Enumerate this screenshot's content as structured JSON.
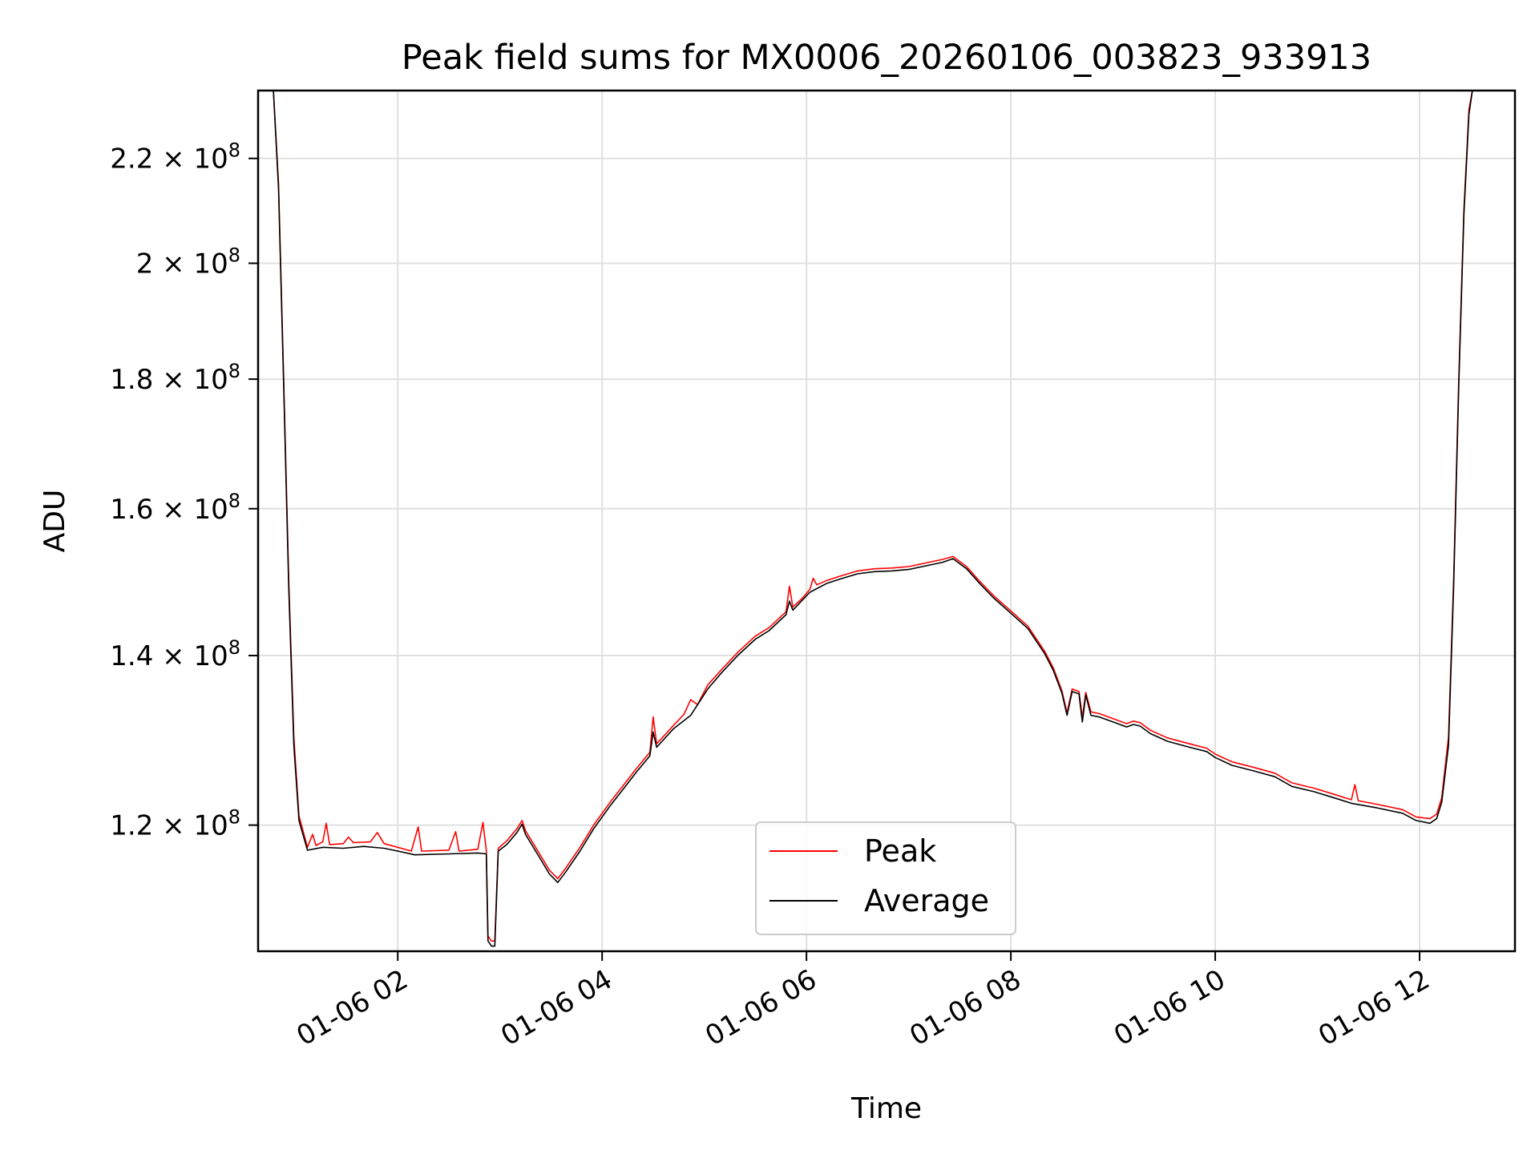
{
  "chart_data": {
    "type": "line",
    "title": "Peak field sums for MX0006_20260106_003823_933913",
    "xlabel": "Time",
    "ylabel": "ADU",
    "y_scale": "log",
    "ylim": [
      107000000,
      234000000
    ],
    "xlim": [
      "2026-01-06 00:38",
      "2026-01-06 12:56"
    ],
    "grid": true,
    "legend_position": "lower center",
    "x_ticks": [
      {
        "t": "2026-01-06 02:00",
        "label": "01-06 02"
      },
      {
        "t": "2026-01-06 04:00",
        "label": "01-06 04"
      },
      {
        "t": "2026-01-06 06:00",
        "label": "01-06 06"
      },
      {
        "t": "2026-01-06 08:00",
        "label": "01-06 08"
      },
      {
        "t": "2026-01-06 10:00",
        "label": "01-06 10"
      },
      {
        "t": "2026-01-06 12:00",
        "label": "01-06 12"
      }
    ],
    "y_ticks": [
      {
        "value": 120000000,
        "mantissa": "1.2"
      },
      {
        "value": 140000000,
        "mantissa": "1.4"
      },
      {
        "value": 160000000,
        "mantissa": "1.6"
      },
      {
        "value": 180000000,
        "mantissa": "1.8"
      },
      {
        "value": 200000000,
        "mantissa": "2"
      },
      {
        "value": 220000000,
        "mantissa": "2.2"
      }
    ],
    "tick_suffix": "× 10",
    "tick_exponent": "8",
    "series": [
      {
        "name": "Peak",
        "color": "#ff0000",
        "points": [
          [
            "2026-01-06 00:38",
            234000000
          ],
          [
            "2026-01-06 00:47",
            234000000
          ],
          [
            "2026-01-06 00:50",
            215000000
          ],
          [
            "2026-01-06 00:53",
            180000000
          ],
          [
            "2026-01-06 00:56",
            150000000
          ],
          [
            "2026-01-06 00:59",
            130000000
          ],
          [
            "2026-01-06 01:02",
            121000000
          ],
          [
            "2026-01-06 01:07",
            117600000
          ],
          [
            "2026-01-06 01:10",
            119000000
          ],
          [
            "2026-01-06 01:12",
            117800000
          ],
          [
            "2026-01-06 01:16",
            118200000
          ],
          [
            "2026-01-06 01:18",
            120200000
          ],
          [
            "2026-01-06 01:20",
            117900000
          ],
          [
            "2026-01-06 01:28",
            118000000
          ],
          [
            "2026-01-06 01:31",
            118700000
          ],
          [
            "2026-01-06 01:34",
            118100000
          ],
          [
            "2026-01-06 01:44",
            118200000
          ],
          [
            "2026-01-06 01:48",
            119200000
          ],
          [
            "2026-01-06 01:52",
            118000000
          ],
          [
            "2026-01-06 02:00",
            117600000
          ],
          [
            "2026-01-06 02:08",
            117200000
          ],
          [
            "2026-01-06 02:12",
            119800000
          ],
          [
            "2026-01-06 02:14",
            117200000
          ],
          [
            "2026-01-06 02:30",
            117300000
          ],
          [
            "2026-01-06 02:34",
            119300000
          ],
          [
            "2026-01-06 02:36",
            117200000
          ],
          [
            "2026-01-06 02:47",
            117400000
          ],
          [
            "2026-01-06 02:50",
            120300000
          ],
          [
            "2026-01-06 02:52",
            117300000
          ],
          [
            "2026-01-06 02:53",
            108500000
          ],
          [
            "2026-01-06 02:55",
            108000000
          ],
          [
            "2026-01-06 02:57",
            108000000
          ],
          [
            "2026-01-06 02:59",
            117500000
          ],
          [
            "2026-01-06 03:04",
            118300000
          ],
          [
            "2026-01-06 03:10",
            119600000
          ],
          [
            "2026-01-06 03:13",
            120500000
          ],
          [
            "2026-01-06 03:15",
            119400000
          ],
          [
            "2026-01-06 03:22",
            117300000
          ],
          [
            "2026-01-06 03:29",
            115200000
          ],
          [
            "2026-01-06 03:34",
            114300000
          ],
          [
            "2026-01-06 03:39",
            115500000
          ],
          [
            "2026-01-06 03:47",
            117600000
          ],
          [
            "2026-01-06 03:55",
            120000000
          ],
          [
            "2026-01-06 04:05",
            122600000
          ],
          [
            "2026-01-06 04:12",
            124300000
          ],
          [
            "2026-01-06 04:20",
            126300000
          ],
          [
            "2026-01-06 04:28",
            128200000
          ],
          [
            "2026-01-06 04:30",
            132400000
          ],
          [
            "2026-01-06 04:32",
            129200000
          ],
          [
            "2026-01-06 04:42",
            131400000
          ],
          [
            "2026-01-06 04:48",
            132700000
          ],
          [
            "2026-01-06 04:52",
            134500000
          ],
          [
            "2026-01-06 04:56",
            133900000
          ],
          [
            "2026-01-06 05:02",
            136300000
          ],
          [
            "2026-01-06 05:10",
            138200000
          ],
          [
            "2026-01-06 05:20",
            140500000
          ],
          [
            "2026-01-06 05:30",
            142500000
          ],
          [
            "2026-01-06 05:38",
            143600000
          ],
          [
            "2026-01-06 05:48",
            145700000
          ],
          [
            "2026-01-06 05:50",
            149100000
          ],
          [
            "2026-01-06 05:52",
            146300000
          ],
          [
            "2026-01-06 05:58",
            147600000
          ],
          [
            "2026-01-06 06:02",
            148700000
          ],
          [
            "2026-01-06 06:04",
            150200000
          ],
          [
            "2026-01-06 06:06",
            149300000
          ],
          [
            "2026-01-06 06:12",
            149900000
          ],
          [
            "2026-01-06 06:20",
            150500000
          ],
          [
            "2026-01-06 06:30",
            151200000
          ],
          [
            "2026-01-06 06:40",
            151500000
          ],
          [
            "2026-01-06 06:50",
            151600000
          ],
          [
            "2026-01-06 07:00",
            151800000
          ],
          [
            "2026-01-06 07:10",
            152300000
          ],
          [
            "2026-01-06 07:20",
            152800000
          ],
          [
            "2026-01-06 07:26",
            153200000
          ],
          [
            "2026-01-06 07:34",
            151800000
          ],
          [
            "2026-01-06 07:42",
            149700000
          ],
          [
            "2026-01-06 07:50",
            147800000
          ],
          [
            "2026-01-06 08:00",
            145800000
          ],
          [
            "2026-01-06 08:10",
            143800000
          ],
          [
            "2026-01-06 08:20",
            140500000
          ],
          [
            "2026-01-06 08:25",
            138400000
          ],
          [
            "2026-01-06 08:30",
            135600000
          ],
          [
            "2026-01-06 08:33",
            132900000
          ],
          [
            "2026-01-06 08:36",
            135800000
          ],
          [
            "2026-01-06 08:40",
            135500000
          ],
          [
            "2026-01-06 08:42",
            132300000
          ],
          [
            "2026-01-06 08:44",
            135400000
          ],
          [
            "2026-01-06 08:47",
            133000000
          ],
          [
            "2026-01-06 08:52",
            132800000
          ],
          [
            "2026-01-06 09:00",
            132200000
          ],
          [
            "2026-01-06 09:08",
            131600000
          ],
          [
            "2026-01-06 09:12",
            131900000
          ],
          [
            "2026-01-06 09:16",
            131700000
          ],
          [
            "2026-01-06 09:22",
            130800000
          ],
          [
            "2026-01-06 09:32",
            129900000
          ],
          [
            "2026-01-06 09:45",
            129200000
          ],
          [
            "2026-01-06 09:55",
            128700000
          ],
          [
            "2026-01-06 10:00",
            128000000
          ],
          [
            "2026-01-06 10:10",
            127100000
          ],
          [
            "2026-01-06 10:22",
            126500000
          ],
          [
            "2026-01-06 10:35",
            125800000
          ],
          [
            "2026-01-06 10:45",
            124700000
          ],
          [
            "2026-01-06 10:58",
            124100000
          ],
          [
            "2026-01-06 11:10",
            123400000
          ],
          [
            "2026-01-06 11:20",
            122800000
          ],
          [
            "2026-01-06 11:22",
            124500000
          ],
          [
            "2026-01-06 11:24",
            122700000
          ],
          [
            "2026-01-06 11:35",
            122300000
          ],
          [
            "2026-01-06 11:50",
            121700000
          ],
          [
            "2026-01-06 11:58",
            120900000
          ],
          [
            "2026-01-06 12:06",
            120700000
          ],
          [
            "2026-01-06 12:10",
            121200000
          ],
          [
            "2026-01-06 12:13",
            123000000
          ],
          [
            "2026-01-06 12:17",
            130000000
          ],
          [
            "2026-01-06 12:20",
            150000000
          ],
          [
            "2026-01-06 12:23",
            180000000
          ],
          [
            "2026-01-06 12:26",
            210000000
          ],
          [
            "2026-01-06 12:29",
            230000000
          ],
          [
            "2026-01-06 12:31",
            234000000
          ],
          [
            "2026-01-06 12:56",
            234000000
          ]
        ]
      },
      {
        "name": "Average",
        "color": "#000000",
        "points": [
          [
            "2026-01-06 00:38",
            234000000
          ],
          [
            "2026-01-06 00:47",
            234000000
          ],
          [
            "2026-01-06 00:50",
            214000000
          ],
          [
            "2026-01-06 00:53",
            179000000
          ],
          [
            "2026-01-06 00:56",
            149000000
          ],
          [
            "2026-01-06 00:59",
            129000000
          ],
          [
            "2026-01-06 01:02",
            120500000
          ],
          [
            "2026-01-06 01:07",
            117300000
          ],
          [
            "2026-01-06 01:16",
            117600000
          ],
          [
            "2026-01-06 01:28",
            117500000
          ],
          [
            "2026-01-06 01:40",
            117700000
          ],
          [
            "2026-01-06 01:52",
            117500000
          ],
          [
            "2026-01-06 02:00",
            117200000
          ],
          [
            "2026-01-06 02:10",
            116800000
          ],
          [
            "2026-01-06 02:30",
            116900000
          ],
          [
            "2026-01-06 02:47",
            117000000
          ],
          [
            "2026-01-06 02:52",
            116900000
          ],
          [
            "2026-01-06 02:53",
            108000000
          ],
          [
            "2026-01-06 02:55",
            107500000
          ],
          [
            "2026-01-06 02:57",
            107500000
          ],
          [
            "2026-01-06 02:59",
            117200000
          ],
          [
            "2026-01-06 03:04",
            117900000
          ],
          [
            "2026-01-06 03:10",
            119200000
          ],
          [
            "2026-01-06 03:13",
            120100000
          ],
          [
            "2026-01-06 03:15",
            119000000
          ],
          [
            "2026-01-06 03:22",
            116900000
          ],
          [
            "2026-01-06 03:29",
            114800000
          ],
          [
            "2026-01-06 03:34",
            113900000
          ],
          [
            "2026-01-06 03:39",
            115100000
          ],
          [
            "2026-01-06 03:47",
            117200000
          ],
          [
            "2026-01-06 03:55",
            119600000
          ],
          [
            "2026-01-06 04:05",
            122200000
          ],
          [
            "2026-01-06 04:12",
            123900000
          ],
          [
            "2026-01-06 04:20",
            125900000
          ],
          [
            "2026-01-06 04:28",
            127800000
          ],
          [
            "2026-01-06 04:30",
            130600000
          ],
          [
            "2026-01-06 04:32",
            128800000
          ],
          [
            "2026-01-06 04:42",
            131000000
          ],
          [
            "2026-01-06 04:52",
            132600000
          ],
          [
            "2026-01-06 05:02",
            135800000
          ],
          [
            "2026-01-06 05:10",
            137800000
          ],
          [
            "2026-01-06 05:20",
            140100000
          ],
          [
            "2026-01-06 05:30",
            142100000
          ],
          [
            "2026-01-06 05:38",
            143200000
          ],
          [
            "2026-01-06 05:48",
            145300000
          ],
          [
            "2026-01-06 05:50",
            147100000
          ],
          [
            "2026-01-06 05:52",
            145900000
          ],
          [
            "2026-01-06 06:02",
            148300000
          ],
          [
            "2026-01-06 06:12",
            149500000
          ],
          [
            "2026-01-06 06:20",
            150100000
          ],
          [
            "2026-01-06 06:30",
            150800000
          ],
          [
            "2026-01-06 06:40",
            151100000
          ],
          [
            "2026-01-06 06:50",
            151200000
          ],
          [
            "2026-01-06 07:00",
            151400000
          ],
          [
            "2026-01-06 07:10",
            151900000
          ],
          [
            "2026-01-06 07:20",
            152400000
          ],
          [
            "2026-01-06 07:26",
            152900000
          ],
          [
            "2026-01-06 07:34",
            151500000
          ],
          [
            "2026-01-06 07:42",
            149400000
          ],
          [
            "2026-01-06 07:50",
            147500000
          ],
          [
            "2026-01-06 08:00",
            145500000
          ],
          [
            "2026-01-06 08:10",
            143500000
          ],
          [
            "2026-01-06 08:20",
            140200000
          ],
          [
            "2026-01-06 08:25",
            138100000
          ],
          [
            "2026-01-06 08:30",
            135300000
          ],
          [
            "2026-01-06 08:33",
            132600000
          ],
          [
            "2026-01-06 08:36",
            135500000
          ],
          [
            "2026-01-06 08:40",
            135200000
          ],
          [
            "2026-01-06 08:42",
            131800000
          ],
          [
            "2026-01-06 08:44",
            135100000
          ],
          [
            "2026-01-06 08:47",
            132600000
          ],
          [
            "2026-01-06 08:52",
            132400000
          ],
          [
            "2026-01-06 09:00",
            131800000
          ],
          [
            "2026-01-06 09:08",
            131200000
          ],
          [
            "2026-01-06 09:12",
            131500000
          ],
          [
            "2026-01-06 09:16",
            131300000
          ],
          [
            "2026-01-06 09:22",
            130400000
          ],
          [
            "2026-01-06 09:32",
            129500000
          ],
          [
            "2026-01-06 09:45",
            128800000
          ],
          [
            "2026-01-06 09:55",
            128300000
          ],
          [
            "2026-01-06 10:00",
            127600000
          ],
          [
            "2026-01-06 10:10",
            126700000
          ],
          [
            "2026-01-06 10:22",
            126100000
          ],
          [
            "2026-01-06 10:35",
            125400000
          ],
          [
            "2026-01-06 10:45",
            124300000
          ],
          [
            "2026-01-06 10:58",
            123700000
          ],
          [
            "2026-01-06 11:10",
            123000000
          ],
          [
            "2026-01-06 11:20",
            122400000
          ],
          [
            "2026-01-06 11:35",
            121900000
          ],
          [
            "2026-01-06 11:50",
            121300000
          ],
          [
            "2026-01-06 11:58",
            120500000
          ],
          [
            "2026-01-06 12:06",
            120200000
          ],
          [
            "2026-01-06 12:10",
            120700000
          ],
          [
            "2026-01-06 12:13",
            122500000
          ],
          [
            "2026-01-06 12:17",
            129000000
          ],
          [
            "2026-01-06 12:20",
            149000000
          ],
          [
            "2026-01-06 12:23",
            179000000
          ],
          [
            "2026-01-06 12:26",
            209000000
          ],
          [
            "2026-01-06 12:29",
            229000000
          ],
          [
            "2026-01-06 12:31",
            234000000
          ],
          [
            "2026-01-06 12:56",
            234000000
          ]
        ]
      }
    ]
  }
}
